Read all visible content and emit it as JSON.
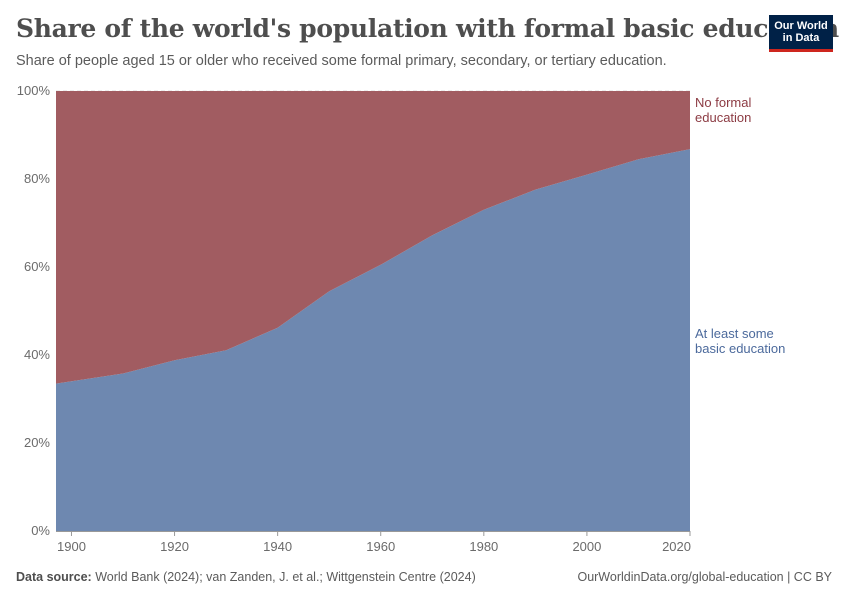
{
  "header": {
    "title": "Share of the world's population with formal basic education",
    "subtitle": "Share of people aged 15 or older who received some formal primary, secondary, or tertiary education."
  },
  "logo": {
    "line1": "Our World",
    "line2": "in Data",
    "bg_color": "#002147",
    "accent_color": "#ce261e"
  },
  "footer": {
    "source_label": "Data source:",
    "source_text": "World Bank (2024); van Zanden, J. et al.; Wittgenstein Centre (2024)",
    "url_license": "OurWorldinData.org/global-education | CC BY"
  },
  "chart_data": {
    "type": "area",
    "stacked": true,
    "x": [
      1900,
      1910,
      1920,
      1930,
      1940,
      1950,
      1960,
      1970,
      1980,
      1990,
      2000,
      2010,
      2020
    ],
    "series": [
      {
        "name": "At least some basic education",
        "color": "#6e88b0",
        "values": [
          33.5,
          35.8,
          38.8,
          41.1,
          46.2,
          54.5,
          60.5,
          67.2,
          73.0,
          77.6,
          81.0,
          84.5,
          86.8
        ]
      },
      {
        "name": "No formal education",
        "color": "#a15c61",
        "values": [
          66.5,
          64.2,
          61.2,
          58.9,
          53.8,
          45.5,
          39.5,
          32.8,
          27.0,
          22.4,
          19.0,
          15.5,
          13.2
        ]
      }
    ],
    "xlim": [
      1897,
      2020
    ],
    "ylim": [
      0,
      100
    ],
    "x_ticks": [
      "1900",
      "1920",
      "1940",
      "1960",
      "1980",
      "2000",
      "2020"
    ],
    "y_ticks": [
      "0%",
      "20%",
      "40%",
      "60%",
      "80%",
      "100%"
    ],
    "grid": true,
    "legend": "right"
  }
}
